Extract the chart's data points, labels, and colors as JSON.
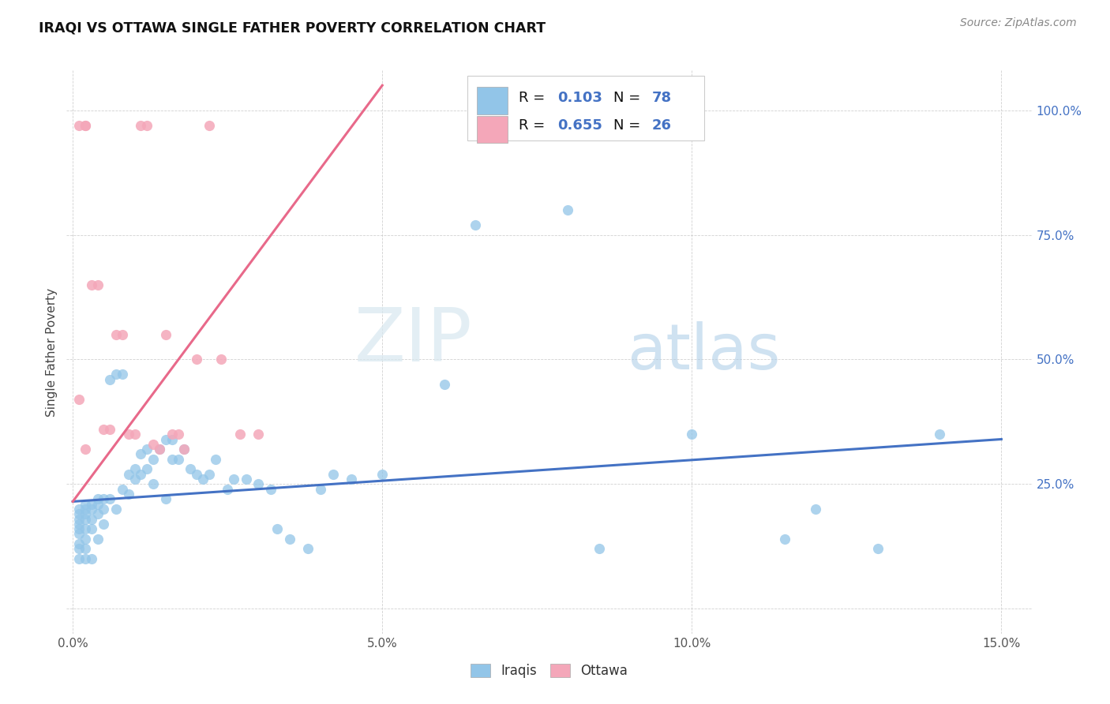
{
  "title": "IRAQI VS OTTAWA SINGLE FATHER POVERTY CORRELATION CHART",
  "source": "Source: ZipAtlas.com",
  "ylabel": "Single Father Poverty",
  "xlim": [
    -0.001,
    0.155
  ],
  "ylim": [
    -0.05,
    1.08
  ],
  "xticks": [
    0.0,
    0.05,
    0.1,
    0.15
  ],
  "xtick_labels": [
    "0.0%",
    "5.0%",
    "10.0%",
    "15.0%"
  ],
  "yticks": [
    0.0,
    0.25,
    0.5,
    0.75,
    1.0
  ],
  "ytick_labels": [
    "",
    "25.0%",
    "50.0%",
    "75.0%",
    "100.0%"
  ],
  "iraqis_R": 0.103,
  "iraqis_N": 78,
  "ottawa_R": 0.655,
  "ottawa_N": 26,
  "iraqis_color": "#92C5E8",
  "ottawa_color": "#F4A7B9",
  "iraqis_line_color": "#4472C4",
  "ottawa_line_color": "#E8698A",
  "watermark_zip": "ZIP",
  "watermark_atlas": "atlas",
  "iraqis_line_x0": 0.0,
  "iraqis_line_y0": 0.215,
  "iraqis_line_x1": 0.15,
  "iraqis_line_y1": 0.34,
  "ottawa_line_x0": 0.0,
  "ottawa_line_y0": 0.215,
  "ottawa_line_x1": 0.05,
  "ottawa_line_y1": 1.05,
  "iraqis_x": [
    0.001,
    0.001,
    0.001,
    0.001,
    0.001,
    0.001,
    0.001,
    0.001,
    0.001,
    0.002,
    0.002,
    0.002,
    0.002,
    0.002,
    0.002,
    0.002,
    0.002,
    0.003,
    0.003,
    0.003,
    0.003,
    0.003,
    0.004,
    0.004,
    0.004,
    0.004,
    0.005,
    0.005,
    0.005,
    0.006,
    0.006,
    0.007,
    0.007,
    0.008,
    0.008,
    0.009,
    0.009,
    0.01,
    0.01,
    0.011,
    0.011,
    0.012,
    0.012,
    0.013,
    0.013,
    0.014,
    0.015,
    0.015,
    0.016,
    0.016,
    0.017,
    0.018,
    0.019,
    0.02,
    0.021,
    0.022,
    0.023,
    0.025,
    0.026,
    0.028,
    0.03,
    0.032,
    0.033,
    0.035,
    0.038,
    0.04,
    0.042,
    0.045,
    0.05,
    0.06,
    0.065,
    0.08,
    0.085,
    0.1,
    0.115,
    0.12,
    0.13,
    0.14
  ],
  "iraqis_y": [
    0.18,
    0.17,
    0.2,
    0.19,
    0.16,
    0.15,
    0.13,
    0.12,
    0.1,
    0.21,
    0.2,
    0.19,
    0.18,
    0.16,
    0.14,
    0.12,
    0.1,
    0.21,
    0.2,
    0.18,
    0.16,
    0.1,
    0.22,
    0.21,
    0.19,
    0.14,
    0.22,
    0.2,
    0.17,
    0.46,
    0.22,
    0.47,
    0.2,
    0.47,
    0.24,
    0.23,
    0.27,
    0.28,
    0.26,
    0.31,
    0.27,
    0.32,
    0.28,
    0.3,
    0.25,
    0.32,
    0.34,
    0.22,
    0.34,
    0.3,
    0.3,
    0.32,
    0.28,
    0.27,
    0.26,
    0.27,
    0.3,
    0.24,
    0.26,
    0.26,
    0.25,
    0.24,
    0.16,
    0.14,
    0.12,
    0.24,
    0.27,
    0.26,
    0.27,
    0.45,
    0.77,
    0.8,
    0.12,
    0.35,
    0.14,
    0.2,
    0.12,
    0.35
  ],
  "ottawa_x": [
    0.001,
    0.001,
    0.002,
    0.002,
    0.002,
    0.003,
    0.004,
    0.005,
    0.006,
    0.007,
    0.008,
    0.009,
    0.01,
    0.011,
    0.012,
    0.013,
    0.014,
    0.015,
    0.016,
    0.017,
    0.018,
    0.02,
    0.022,
    0.024,
    0.027,
    0.03
  ],
  "ottawa_y": [
    0.97,
    0.42,
    0.97,
    0.97,
    0.32,
    0.65,
    0.65,
    0.36,
    0.36,
    0.55,
    0.55,
    0.35,
    0.35,
    0.97,
    0.97,
    0.33,
    0.32,
    0.55,
    0.35,
    0.35,
    0.32,
    0.5,
    0.97,
    0.5,
    0.35,
    0.35
  ]
}
